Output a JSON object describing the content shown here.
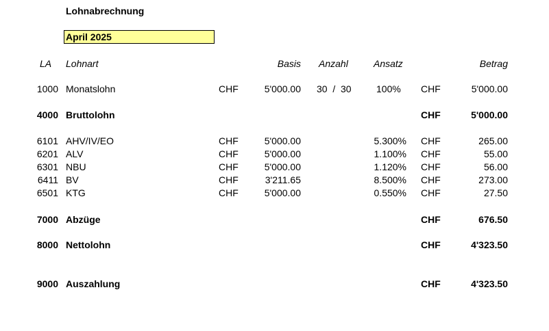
{
  "title": "Lohnabrechnung",
  "period": "April 2025",
  "headers": {
    "la": "LA",
    "lohnart": "Lohnart",
    "basis": "Basis",
    "anzahl": "Anzahl",
    "ansatz": "Ansatz",
    "betrag": "Betrag"
  },
  "rows": [
    {
      "la": "1000",
      "name": "Monatslohn",
      "cur1": "CHF",
      "basis": "5'000.00",
      "anzahl": "30  /  30",
      "ansatz": "100%",
      "cur2": "CHF",
      "betrag": "5'000.00",
      "bold": false
    },
    {
      "la": "4000",
      "name": "Bruttolohn",
      "cur1": "",
      "basis": "",
      "anzahl": "",
      "ansatz": "",
      "cur2": "CHF",
      "betrag": "5'000.00",
      "bold": true
    },
    {
      "la": "6101",
      "name": "AHV/IV/EO",
      "cur1": "CHF",
      "basis": "5'000.00",
      "anzahl": "",
      "ansatz": "5.300%",
      "cur2": "CHF",
      "betrag": "265.00",
      "bold": false
    },
    {
      "la": "6201",
      "name": "ALV",
      "cur1": "CHF",
      "basis": "5'000.00",
      "anzahl": "",
      "ansatz": "1.100%",
      "cur2": "CHF",
      "betrag": "55.00",
      "bold": false
    },
    {
      "la": "6301",
      "name": "NBU",
      "cur1": "CHF",
      "basis": "5'000.00",
      "anzahl": "",
      "ansatz": "1.120%",
      "cur2": "CHF",
      "betrag": "56.00",
      "bold": false
    },
    {
      "la": "6411",
      "name": "BV",
      "cur1": "CHF",
      "basis": "3'211.65",
      "anzahl": "",
      "ansatz": "8.500%",
      "cur2": "CHF",
      "betrag": "273.00",
      "bold": false
    },
    {
      "la": "6501",
      "name": "KTG",
      "cur1": "CHF",
      "basis": "5'000.00",
      "anzahl": "",
      "ansatz": "0.550%",
      "cur2": "CHF",
      "betrag": "27.50",
      "bold": false
    },
    {
      "la": "7000",
      "name": "Abzüge",
      "cur1": "",
      "basis": "",
      "anzahl": "",
      "ansatz": "",
      "cur2": "CHF",
      "betrag": "676.50",
      "bold": true
    },
    {
      "la": "8000",
      "name": "Nettolohn",
      "cur1": "",
      "basis": "",
      "anzahl": "",
      "ansatz": "",
      "cur2": "CHF",
      "betrag": "4'323.50",
      "bold": true
    },
    {
      "la": "9000",
      "name": "Auszahlung",
      "cur1": "",
      "basis": "",
      "anzahl": "",
      "ansatz": "",
      "cur2": "CHF",
      "betrag": "4'323.50",
      "bold": true
    }
  ]
}
